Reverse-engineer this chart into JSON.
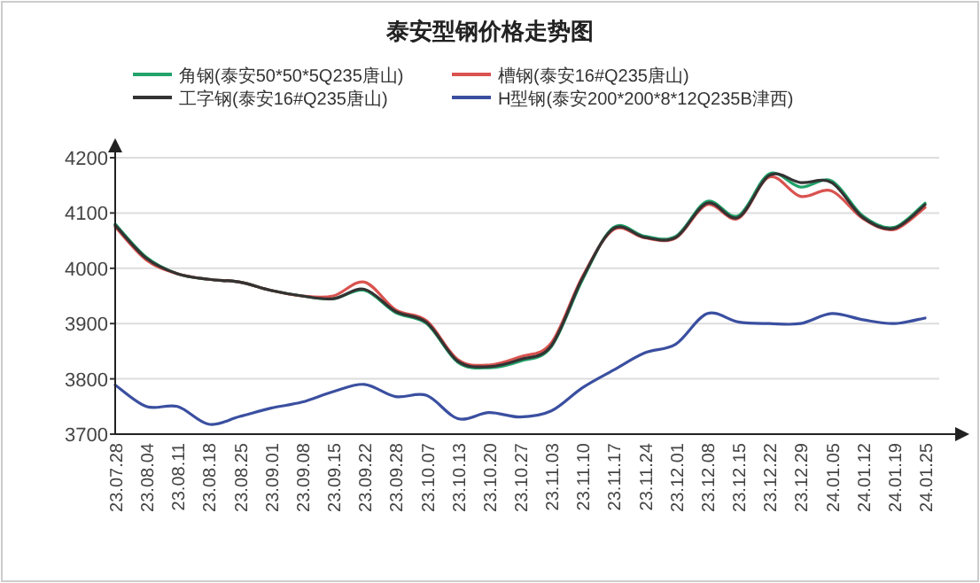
{
  "chart_data": {
    "type": "line",
    "title": "泰安型钢价格走势图",
    "categories": [
      "23.07.28",
      "23.08.04",
      "23.08.11",
      "23.08.18",
      "23.08.25",
      "23.09.01",
      "23.09.08",
      "23.09.15",
      "23.09.22",
      "23.09.28",
      "23.10.07",
      "23.10.13",
      "23.10.20",
      "23.10.27",
      "23.11.03",
      "23.11.10",
      "23.11.17",
      "23.11.24",
      "23.12.01",
      "23.12.08",
      "23.12.15",
      "23.12.22",
      "23.12.29",
      "24.01.05",
      "24.01.12",
      "24.01.19",
      "24.01.25"
    ],
    "series": [
      {
        "name": "角钢(泰安50*50*5Q235唐山)",
        "color": "#22a36a",
        "values": [
          4080,
          4020,
          3990,
          3980,
          3975,
          3960,
          3950,
          3945,
          3960,
          3920,
          3900,
          3830,
          3820,
          3832,
          3858,
          3979,
          4074,
          4058,
          4058,
          4121,
          4095,
          4171,
          4147,
          4158,
          4095,
          4074,
          4118
        ]
      },
      {
        "name": "槽钢(泰安16#Q235唐山)",
        "color": "#d9534f",
        "values": [
          4075,
          4015,
          3990,
          3980,
          3975,
          3960,
          3950,
          3950,
          3975,
          3925,
          3905,
          3835,
          3825,
          3840,
          3865,
          3985,
          4070,
          4055,
          4055,
          4115,
          4090,
          4165,
          4130,
          4140,
          4090,
          4070,
          4110
        ]
      },
      {
        "name": "工字钢(泰安16#Q235唐山)",
        "color": "#333333",
        "values": [
          4078,
          4018,
          3990,
          3980,
          3975,
          3960,
          3950,
          3945,
          3962,
          3922,
          3902,
          3832,
          3822,
          3835,
          3860,
          3982,
          4072,
          4056,
          4056,
          4118,
          4092,
          4168,
          4155,
          4155,
          4092,
          4072,
          4115
        ]
      },
      {
        "name": "H型钢(泰安200*200*8*12Q235B津西)",
        "color": "#3a4fa0",
        "values": [
          3789,
          3750,
          3750,
          3718,
          3732,
          3747,
          3758,
          3777,
          3790,
          3768,
          3770,
          3728,
          3739,
          3731,
          3742,
          3784,
          3816,
          3847,
          3863,
          3918,
          3903,
          3900,
          3900,
          3918,
          3907,
          3900,
          3910
        ]
      }
    ],
    "ylim": [
      3700,
      4200
    ],
    "yticks": [
      3700,
      3800,
      3900,
      4000,
      4100,
      4200
    ],
    "grid": "y",
    "legend": "top",
    "marker": "none",
    "line_style": "solid"
  }
}
